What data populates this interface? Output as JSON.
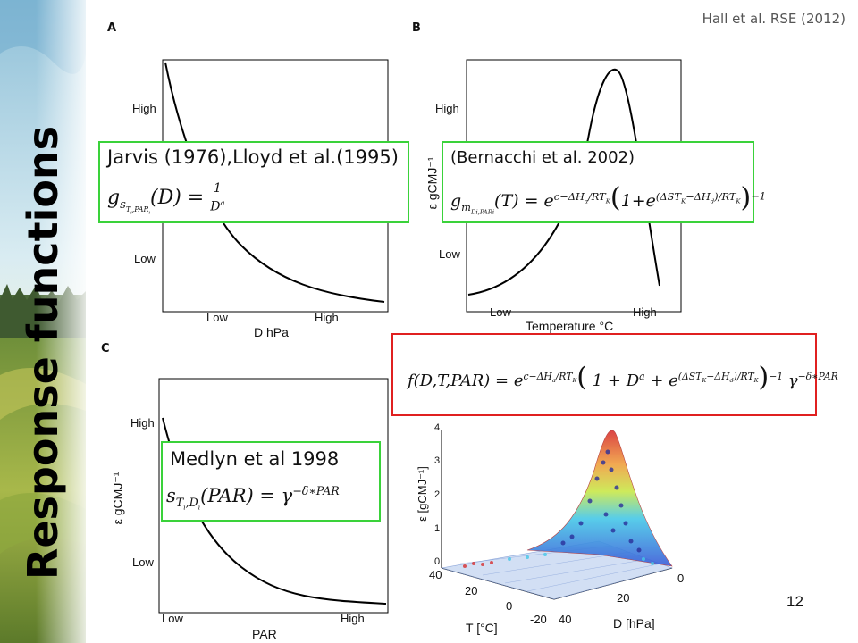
{
  "citation": "Hall et al. RSE (2012)",
  "slide_title": "Response functions",
  "page_number": "12",
  "panels": {
    "A": {
      "label": "A",
      "xlabel": "D hPa",
      "xticks": [
        "Low",
        "High"
      ],
      "yticks": [
        "High",
        "Low"
      ]
    },
    "B": {
      "label": "B",
      "xlabel": "Temperature °C",
      "ylabel": "ε gCMJ⁻¹",
      "xticks": [
        "Low",
        "High"
      ],
      "yticks": [
        "High",
        "Low"
      ]
    },
    "C": {
      "label": "C",
      "xlabel": "PAR",
      "ylabel": "ε gCMJ⁻¹",
      "xticks": [
        "Low",
        "High"
      ],
      "yticks": [
        "High",
        "Low"
      ]
    }
  },
  "equations": {
    "jarvis": {
      "title": "Jarvis (1976),Lloyd et al.(1995)"
    },
    "bernacchi": {
      "title": "(Bernacchi et al. 2002)"
    },
    "medlyn": {
      "title": "Medlyn et al 1998"
    },
    "combined": {}
  },
  "plot3d": {
    "zlabel": "ε [gCMJ⁻¹]",
    "zticks": [
      "4",
      "3",
      "2",
      "1",
      "0"
    ],
    "tlabel": "T [°C]",
    "tticks": [
      "40",
      "20",
      "0",
      "-20"
    ],
    "dlabel": "D [hPa]",
    "dticks": [
      "0",
      "20",
      "40"
    ]
  },
  "colors": {
    "green_box": "#3ad23a",
    "red_box": "#e02020"
  }
}
